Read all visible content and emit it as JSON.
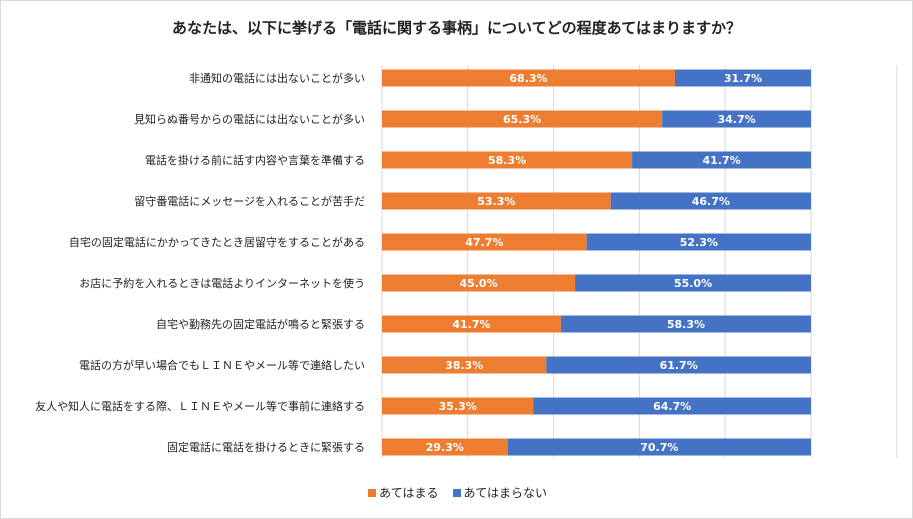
{
  "chart_data": {
    "type": "bar",
    "stacked": true,
    "orientation": "horizontal",
    "title": "あなたは、以下に挙げる「電話に関する事柄」についてどの程度あてはまりますか？",
    "categories": [
      "非通知の電話には出ないことが多い",
      "見知らぬ番号からの電話には出ないことが多い",
      "電話を掛ける前に話す内容や言葉を準備する",
      "留守番電話にメッセージを入れることが苦手だ",
      "自宅の固定電話にかかってきたとき居留守をすることがある",
      "お店に予約を入れるときは電話よりインターネットを使う",
      "自宅や勤務先の固定電話が鳴ると緊張する",
      "電話の方が早い場合でもＬＩＮＥやメール等で連絡したい",
      "友人や知人に電話をする際、ＬＩＮＥやメール等で事前に連絡する",
      "固定電話に電話を掛けるときに緊張する"
    ],
    "series": [
      {
        "name": "あてはまる",
        "color": "#ed7d31",
        "values": [
          68.3,
          65.3,
          58.3,
          53.3,
          47.7,
          45.0,
          41.7,
          38.3,
          35.3,
          29.3
        ]
      },
      {
        "name": "あてはまらない",
        "color": "#4472c4",
        "values": [
          31.7,
          34.7,
          41.7,
          46.7,
          52.3,
          55.0,
          58.3,
          61.7,
          64.7,
          70.7
        ]
      }
    ],
    "xlim": [
      0,
      100
    ],
    "grid": true,
    "legend": "bottom",
    "data_labels": true
  }
}
